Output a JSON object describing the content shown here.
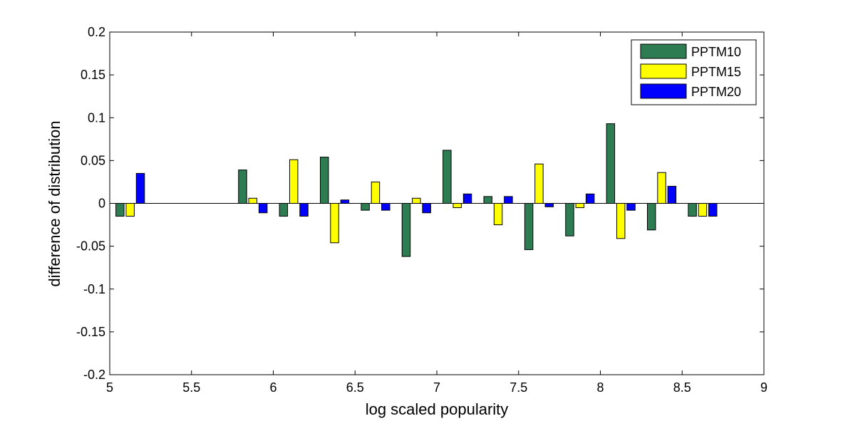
{
  "chart_data": {
    "type": "bar",
    "title": "",
    "xlabel": "log scaled popularity",
    "ylabel": "difference of distribution",
    "xlim": [
      5,
      9
    ],
    "ylim": [
      -0.2,
      0.2
    ],
    "xticks": [
      5,
      5.5,
      6,
      6.5,
      7,
      7.5,
      8,
      8.5,
      9
    ],
    "xtick_labels": [
      "5",
      "5.5",
      "6",
      "6.5",
      "7",
      "7.5",
      "8",
      "8.5",
      "9"
    ],
    "yticks": [
      -0.2,
      -0.15,
      -0.1,
      -0.05,
      0,
      0.05,
      0.1,
      0.15,
      0.2
    ],
    "ytick_labels": [
      "-0.2",
      "-0.15",
      "-0.1",
      "-0.05",
      "0",
      "0.05",
      "0.1",
      "0.15",
      "0.2"
    ],
    "x": [
      5.125,
      5.875,
      6.125,
      6.375,
      6.625,
      6.875,
      7.125,
      7.375,
      7.625,
      7.875,
      8.125,
      8.375,
      8.625
    ],
    "series": [
      {
        "name": "PPTM10",
        "color": "#2e7d52",
        "values": [
          -0.015,
          0.039,
          -0.015,
          0.054,
          -0.008,
          -0.062,
          0.062,
          0.008,
          -0.054,
          -0.038,
          0.093,
          -0.031,
          -0.015
        ]
      },
      {
        "name": "PPTM15",
        "color": "#ffff00",
        "values": [
          -0.015,
          0.006,
          0.051,
          -0.046,
          0.025,
          0.006,
          -0.005,
          -0.025,
          0.046,
          -0.005,
          -0.041,
          0.036,
          -0.015
        ]
      },
      {
        "name": "PPTM20",
        "color": "#0000ff",
        "values": [
          0.035,
          -0.011,
          -0.015,
          0.004,
          -0.008,
          -0.011,
          0.011,
          0.008,
          -0.004,
          0.011,
          -0.008,
          0.02,
          -0.015
        ]
      }
    ],
    "grid": false,
    "legend_position": "top-right"
  }
}
